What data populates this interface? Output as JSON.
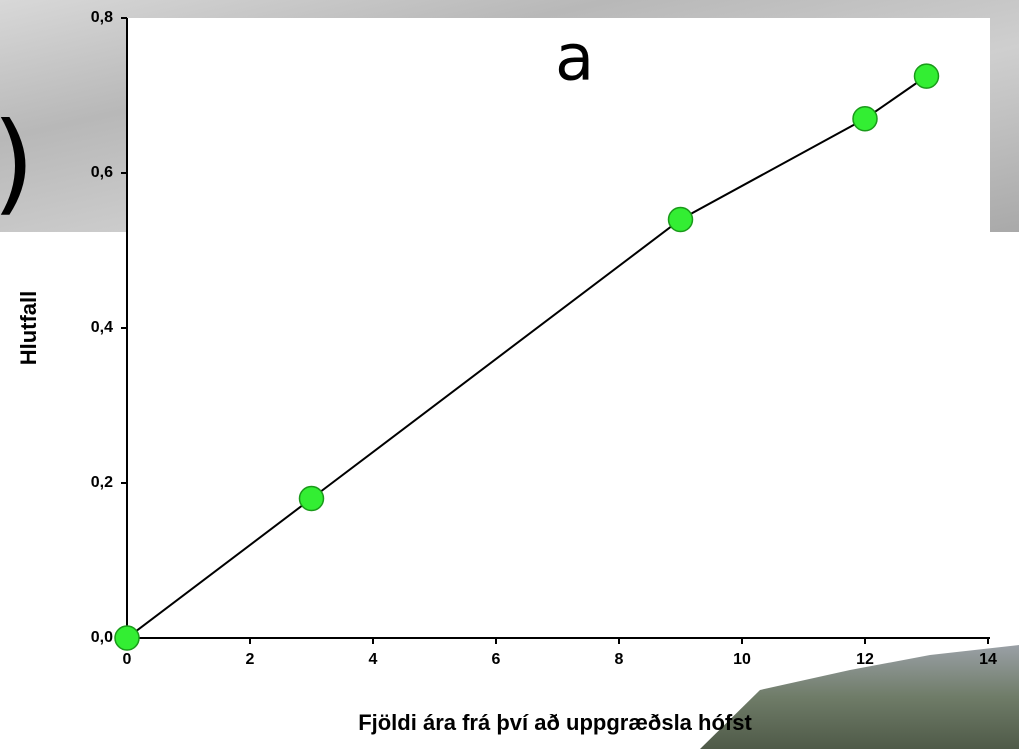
{
  "slide_text": [
    "a",
    ")"
  ],
  "chart_data": {
    "type": "line",
    "x_label": "Fjöldi ára frá því að uppgræðsla hófst",
    "y_label": "Hlutfall",
    "x": [
      0,
      3,
      9,
      12,
      13
    ],
    "values": [
      0,
      0.18,
      0.54,
      0.67,
      0.725
    ],
    "color": "#000000",
    "marker_color": "#33ee33",
    "xlim": [
      0,
      14
    ],
    "xticks": [
      0,
      2,
      4,
      6,
      8,
      10,
      12,
      14
    ],
    "ylim": [
      0,
      0.8
    ],
    "yticks": [
      {
        "value": 0,
        "label": "0,0"
      },
      {
        "value": 0.2,
        "label": "0,2"
      },
      {
        "value": 0.4,
        "label": "0,4"
      },
      {
        "value": 0.6,
        "label": "0,6"
      },
      {
        "value": 0.8,
        "label": "0,8"
      }
    ]
  }
}
